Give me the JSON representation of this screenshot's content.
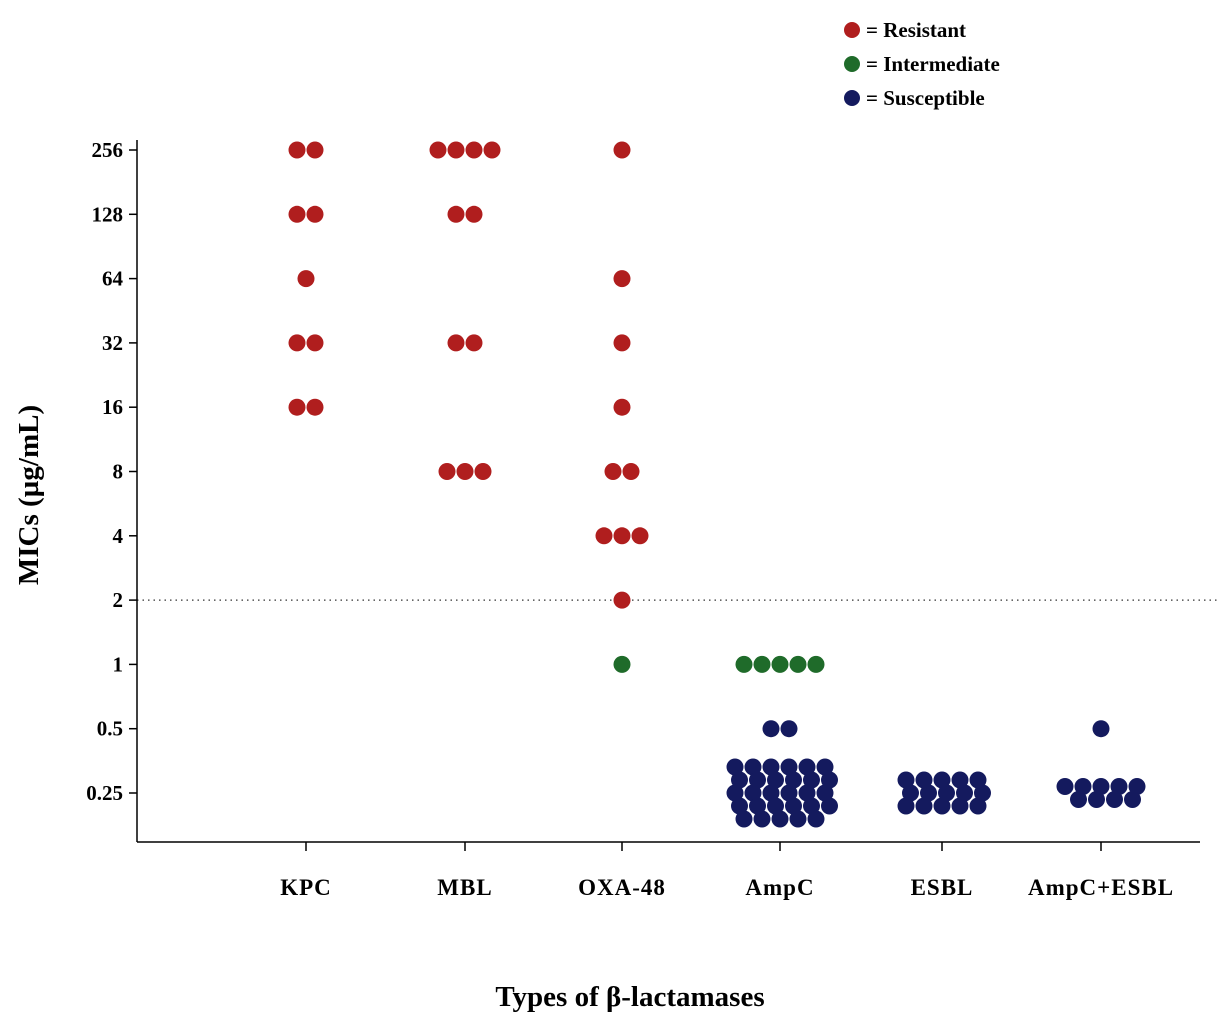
{
  "chart_data": {
    "type": "scatter",
    "title": "",
    "xlabel": "Types of β-lactamases",
    "ylabel": "MICs (µg/mL)",
    "yscale": "log2",
    "ylim": [
      0.125,
      256
    ],
    "yticks": [
      "256",
      "128",
      "64",
      "32",
      "16",
      "8",
      "4",
      "2",
      "1",
      "0.5",
      "0.25"
    ],
    "ytick_values": [
      256,
      128,
      64,
      32,
      16,
      8,
      4,
      2,
      1,
      0.5,
      0.25
    ],
    "categories": [
      "KPC",
      "MBL",
      "OXA-48",
      "AmpC",
      "ESBL",
      "AmpC+ESBL"
    ],
    "reference_line": {
      "y": 2,
      "style": "dotted"
    },
    "legend_position": "top-right",
    "legend": [
      {
        "label": "= Resistant",
        "color": "#b01e1e"
      },
      {
        "label": "= Intermediate",
        "color": "#1f6b2a"
      },
      {
        "label": "= Susceptible",
        "color": "#141a5e"
      }
    ],
    "series": [
      {
        "category": "KPC",
        "groups": [
          {
            "y": 256,
            "count": 2,
            "status": "resistant"
          },
          {
            "y": 128,
            "count": 2,
            "status": "resistant"
          },
          {
            "y": 64,
            "count": 1,
            "status": "resistant"
          },
          {
            "y": 32,
            "count": 2,
            "status": "resistant"
          },
          {
            "y": 16,
            "count": 2,
            "status": "resistant"
          }
        ]
      },
      {
        "category": "MBL",
        "groups": [
          {
            "y": 256,
            "count": 4,
            "status": "resistant"
          },
          {
            "y": 128,
            "count": 2,
            "status": "resistant"
          },
          {
            "y": 32,
            "count": 2,
            "status": "resistant"
          },
          {
            "y": 8,
            "count": 3,
            "status": "resistant"
          }
        ]
      },
      {
        "category": "OXA-48",
        "groups": [
          {
            "y": 256,
            "count": 1,
            "status": "resistant"
          },
          {
            "y": 64,
            "count": 1,
            "status": "resistant"
          },
          {
            "y": 32,
            "count": 1,
            "status": "resistant"
          },
          {
            "y": 16,
            "count": 1,
            "status": "resistant"
          },
          {
            "y": 8,
            "count": 2,
            "status": "resistant"
          },
          {
            "y": 4,
            "count": 3,
            "status": "resistant"
          },
          {
            "y": 2,
            "count": 1,
            "status": "resistant"
          },
          {
            "y": 1,
            "count": 1,
            "status": "intermediate"
          }
        ]
      },
      {
        "category": "AmpC",
        "groups": [
          {
            "y": 1,
            "count": 5,
            "status": "intermediate"
          },
          {
            "y": 0.5,
            "count": 2,
            "status": "susceptible"
          },
          {
            "y": 0.25,
            "count": 29,
            "status": "susceptible"
          }
        ]
      },
      {
        "category": "ESBL",
        "groups": [
          {
            "y": 0.25,
            "count": 15,
            "status": "susceptible"
          }
        ]
      },
      {
        "category": "AmpC+ESBL",
        "groups": [
          {
            "y": 0.5,
            "count": 1,
            "status": "susceptible"
          },
          {
            "y": 0.25,
            "count": 9,
            "status": "susceptible"
          }
        ]
      }
    ]
  }
}
